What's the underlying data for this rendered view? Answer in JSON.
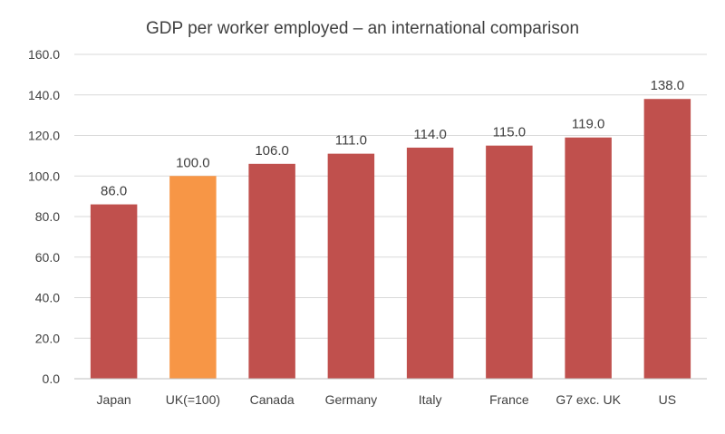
{
  "chart_data": {
    "type": "bar",
    "title": "GDP per worker employed – an international comparison",
    "categories": [
      "Japan",
      "UK(=100)",
      "Canada",
      "Germany",
      "Italy",
      "France",
      "G7 exc. UK",
      "US"
    ],
    "values": [
      86.0,
      100.0,
      106.0,
      111.0,
      114.0,
      115.0,
      119.0,
      138.0
    ],
    "data_labels": [
      "86.0",
      "100.0",
      "106.0",
      "111.0",
      "114.0",
      "115.0",
      "119.0",
      "138.0"
    ],
    "ylim": [
      0,
      160
    ],
    "yticks": [
      "0.0",
      "20.0",
      "40.0",
      "60.0",
      "80.0",
      "100.0",
      "120.0",
      "140.0",
      "160.0"
    ],
    "grid": true,
    "colors": {
      "default_bar": "#c0504d",
      "highlight_bar": "#f79646",
      "highlight_category": "UK(=100)"
    }
  }
}
